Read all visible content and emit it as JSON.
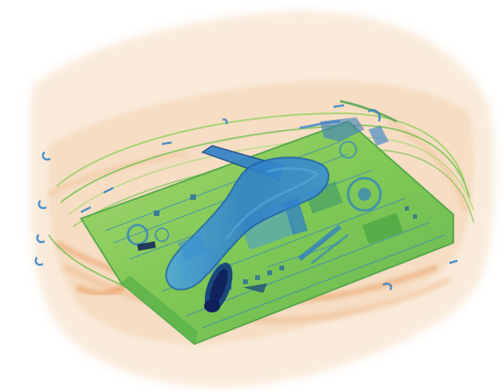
{
  "image": {
    "kind": "x-ray-baggage-scan",
    "background_color": "#ffffff",
    "palette": {
      "organic_light": "#f3d2ae",
      "organic_mid": "#eeb07b",
      "organic_dark": "#e6924f",
      "mixed_light": "#bfe07a",
      "mixed_mid": "#76c74c",
      "mixed_dark": "#3f9f3d",
      "dense_light": "#4fa8d8",
      "dense_mid": "#2f7fc8",
      "dense_dark": "#15407e",
      "very_dense": "#0f1f5a"
    },
    "objects": [
      {
        "name": "soft-case-shell",
        "material": "organic"
      },
      {
        "name": "laptop-circuit-board",
        "material": "mixed"
      },
      {
        "name": "elongated-dense-tool",
        "material": "dense"
      },
      {
        "name": "dense-cylindrical-item",
        "material": "very-dense"
      },
      {
        "name": "cables-and-straps",
        "material": "mixed"
      },
      {
        "name": "zipper-pulls",
        "material": "dense"
      }
    ]
  }
}
